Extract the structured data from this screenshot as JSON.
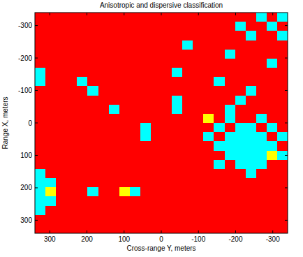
{
  "chart_data": {
    "type": "heatmap",
    "title": "Anisotropic and dispersive classification",
    "x_label": "Cross-range Y, meters",
    "y_label": "Range X, meters",
    "xlim": [
      340,
      -340
    ],
    "xticks": [
      300,
      200,
      100,
      0,
      -100,
      -200,
      -300
    ],
    "ylim": [
      -340,
      340
    ],
    "yticks": [
      -300,
      -200,
      -100,
      0,
      100,
      200,
      300
    ],
    "colors": [
      "#ff0000",
      "#00ffff",
      "#ffff00"
    ],
    "cells": [
      [
        0,
        0,
        0,
        0,
        0,
        0,
        0,
        0,
        0,
        0,
        0,
        0,
        0,
        0,
        0,
        0,
        0,
        0,
        0,
        0,
        0,
        1,
        0,
        1
      ],
      [
        0,
        0,
        0,
        0,
        0,
        0,
        0,
        0,
        0,
        0,
        0,
        0,
        0,
        0,
        0,
        0,
        0,
        0,
        0,
        1,
        0,
        0,
        1,
        0
      ],
      [
        0,
        0,
        0,
        0,
        0,
        0,
        0,
        0,
        0,
        0,
        0,
        0,
        0,
        0,
        0,
        0,
        0,
        0,
        0,
        0,
        1,
        0,
        0,
        1
      ],
      [
        0,
        0,
        0,
        0,
        0,
        0,
        0,
        0,
        0,
        0,
        0,
        0,
        0,
        0,
        1,
        0,
        0,
        0,
        0,
        0,
        0,
        0,
        0,
        0
      ],
      [
        0,
        0,
        0,
        0,
        0,
        0,
        0,
        0,
        0,
        0,
        0,
        0,
        0,
        0,
        0,
        0,
        0,
        0,
        1,
        0,
        0,
        0,
        0,
        0
      ],
      [
        0,
        0,
        0,
        0,
        0,
        0,
        0,
        0,
        0,
        0,
        0,
        0,
        0,
        0,
        0,
        0,
        0,
        0,
        0,
        0,
        0,
        0,
        1,
        0
      ],
      [
        1,
        0,
        0,
        0,
        0,
        0,
        0,
        0,
        0,
        0,
        0,
        0,
        0,
        1,
        0,
        0,
        0,
        0,
        0,
        0,
        0,
        0,
        0,
        0
      ],
      [
        1,
        0,
        0,
        0,
        1,
        0,
        0,
        0,
        0,
        0,
        0,
        0,
        0,
        0,
        0,
        0,
        0,
        1,
        0,
        0,
        0,
        0,
        0,
        0
      ],
      [
        0,
        0,
        0,
        0,
        0,
        1,
        0,
        0,
        0,
        0,
        0,
        0,
        0,
        0,
        0,
        0,
        0,
        0,
        0,
        0,
        1,
        0,
        0,
        0
      ],
      [
        0,
        0,
        0,
        0,
        0,
        0,
        0,
        0,
        0,
        0,
        0,
        0,
        0,
        1,
        0,
        0,
        0,
        0,
        0,
        1,
        0,
        0,
        0,
        0
      ],
      [
        0,
        0,
        0,
        0,
        0,
        0,
        0,
        1,
        0,
        0,
        0,
        0,
        0,
        1,
        0,
        0,
        0,
        0,
        1,
        0,
        0,
        0,
        0,
        0
      ],
      [
        0,
        0,
        0,
        0,
        0,
        0,
        0,
        0,
        0,
        0,
        0,
        0,
        0,
        0,
        0,
        0,
        2,
        0,
        1,
        0,
        0,
        1,
        0,
        0
      ],
      [
        0,
        0,
        0,
        0,
        0,
        0,
        0,
        0,
        0,
        0,
        1,
        0,
        0,
        0,
        0,
        0,
        0,
        1,
        0,
        1,
        1,
        0,
        1,
        0
      ],
      [
        0,
        0,
        0,
        0,
        0,
        0,
        0,
        0,
        0,
        0,
        1,
        0,
        0,
        0,
        0,
        0,
        1,
        0,
        1,
        1,
        1,
        1,
        0,
        1
      ],
      [
        0,
        0,
        0,
        0,
        0,
        0,
        0,
        0,
        0,
        0,
        0,
        0,
        0,
        0,
        0,
        0,
        0,
        1,
        1,
        1,
        1,
        1,
        1,
        0
      ],
      [
        0,
        0,
        0,
        0,
        0,
        0,
        0,
        0,
        0,
        0,
        0,
        0,
        0,
        0,
        0,
        0,
        0,
        0,
        1,
        1,
        1,
        1,
        2,
        1
      ],
      [
        0,
        0,
        0,
        0,
        0,
        0,
        0,
        0,
        0,
        0,
        0,
        0,
        0,
        0,
        0,
        0,
        0,
        1,
        0,
        1,
        1,
        1,
        0,
        0
      ],
      [
        1,
        0,
        0,
        0,
        0,
        0,
        0,
        0,
        0,
        0,
        0,
        0,
        0,
        0,
        0,
        0,
        0,
        0,
        0,
        0,
        1,
        0,
        0,
        0
      ],
      [
        1,
        1,
        0,
        0,
        0,
        0,
        0,
        0,
        0,
        0,
        0,
        0,
        0,
        0,
        0,
        0,
        0,
        0,
        0,
        0,
        0,
        0,
        0,
        0
      ],
      [
        1,
        2,
        0,
        0,
        0,
        1,
        0,
        0,
        2,
        1,
        0,
        0,
        0,
        0,
        0,
        0,
        0,
        0,
        0,
        0,
        0,
        0,
        0,
        0
      ],
      [
        1,
        1,
        0,
        0,
        0,
        0,
        0,
        0,
        0,
        0,
        0,
        0,
        0,
        0,
        0,
        0,
        0,
        0,
        0,
        0,
        0,
        0,
        0,
        0
      ],
      [
        1,
        0,
        0,
        0,
        0,
        0,
        0,
        0,
        0,
        0,
        0,
        0,
        0,
        0,
        0,
        0,
        0,
        0,
        0,
        0,
        0,
        0,
        0,
        0
      ],
      [
        0,
        0,
        0,
        0,
        0,
        0,
        0,
        0,
        0,
        0,
        0,
        0,
        0,
        0,
        0,
        0,
        0,
        0,
        0,
        0,
        0,
        0,
        0,
        0
      ],
      [
        0,
        0,
        0,
        0,
        0,
        0,
        0,
        0,
        0,
        0,
        0,
        0,
        0,
        0,
        0,
        0,
        0,
        0,
        0,
        0,
        0,
        0,
        0,
        0
      ]
    ]
  }
}
